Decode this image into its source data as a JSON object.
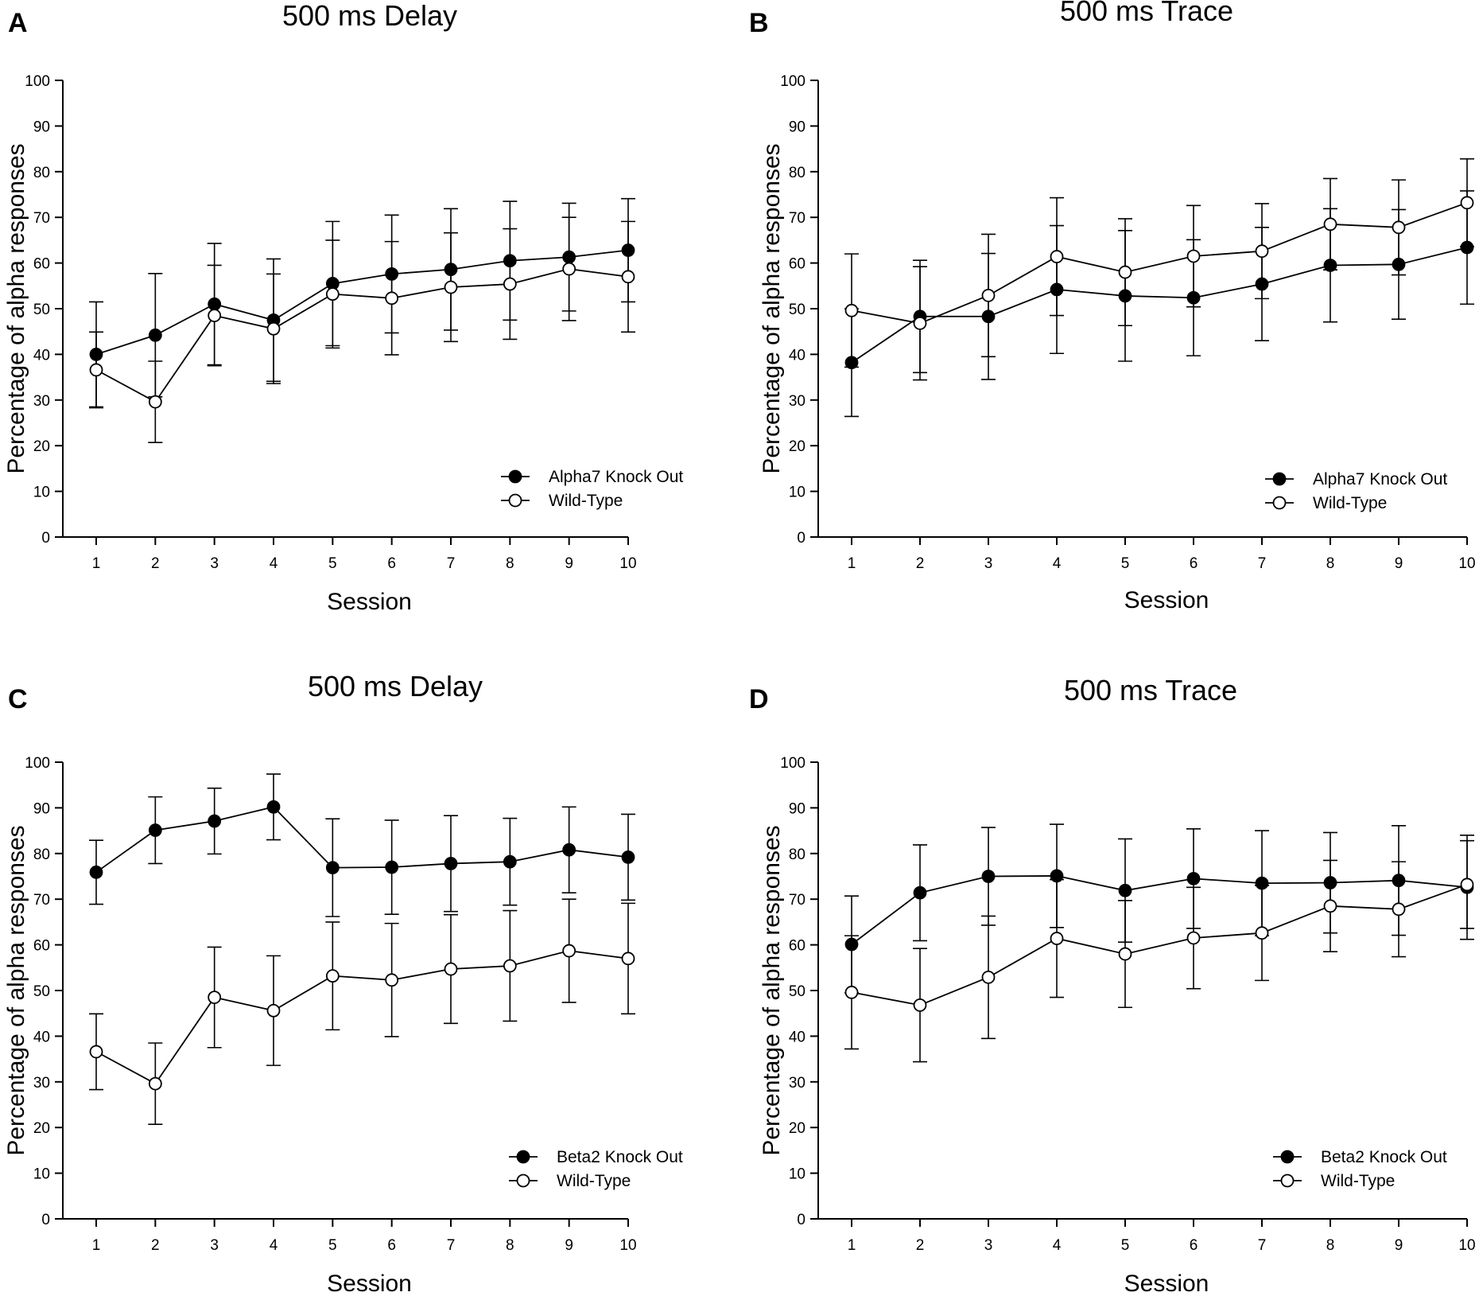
{
  "chart_data": [
    {
      "panel": "A",
      "type": "line",
      "title": "500 ms Delay",
      "xlabel": "Session",
      "ylabel": "Percentage of alpha responses",
      "ylim": [
        0,
        100
      ],
      "yticks": [
        0,
        10,
        20,
        30,
        40,
        50,
        60,
        70,
        80,
        90,
        100
      ],
      "categories": [
        1,
        2,
        3,
        4,
        5,
        6,
        7,
        8,
        9,
        10
      ],
      "legend_position": "bottom-right",
      "series": [
        {
          "name": "Alpha7 Knock Out",
          "marker": "filled-circle",
          "values": [
            40,
            44.2,
            51,
            47.5,
            55.5,
            57.6,
            58.6,
            60.5,
            61.3,
            62.8
          ],
          "error": [
            11.5,
            13.5,
            13.3,
            13.4,
            13.6,
            12.9,
            13.3,
            13,
            11.8,
            11.3
          ]
        },
        {
          "name": "Wild-Type",
          "marker": "open-circle",
          "values": [
            36.6,
            29.6,
            48.5,
            45.6,
            53.2,
            52.3,
            54.7,
            55.4,
            58.7,
            57
          ]
        },
        {
          "name": "Wild-Type",
          "marker": "open-circle",
          "values": [
            36.6,
            29.6,
            48.5,
            45.6,
            53.2,
            52.3,
            54.7,
            55.4,
            58.7,
            57
          ],
          "error": [
            8.3,
            8.9,
            11,
            12,
            11.8,
            12.4,
            11.9,
            12.1,
            11.3,
            12.1
          ]
        }
      ]
    },
    {
      "panel": "B",
      "type": "line",
      "title": "500 ms Trace",
      "xlabel": "Session",
      "ylabel": "Percentage of alpha responses",
      "ylim": [
        0,
        100
      ],
      "yticks": [
        0,
        10,
        20,
        30,
        40,
        50,
        60,
        70,
        80,
        90,
        100
      ],
      "categories": [
        1,
        2,
        3,
        4,
        5,
        6,
        7,
        8,
        9,
        10
      ],
      "legend_position": "bottom-right",
      "series": [
        {
          "name": "Alpha7 Knock Out",
          "marker": "filled-circle",
          "values": [
            38.2,
            48.3,
            48.3,
            54.2,
            52.8,
            52.4,
            55.4,
            59.5,
            59.7,
            63.4
          ],
          "error": [
            11.8,
            12.3,
            13.8,
            14,
            14.3,
            12.7,
            12.4,
            12.4,
            12,
            12.4
          ]
        },
        {
          "name": "Wild-Type",
          "marker": "open-circle",
          "values": [
            49.6,
            46.8,
            52.9,
            61.4,
            58,
            61.5,
            62.6,
            68.5,
            67.8,
            73.2
          ],
          "error": [
            12.4,
            12.4,
            13.4,
            12.9,
            11.7,
            11.1,
            10.4,
            10,
            10.4,
            9.6
          ]
        }
      ]
    },
    {
      "panel": "C",
      "type": "line",
      "title": "500 ms Delay",
      "xlabel": "Session",
      "ylabel": "Percentage of alpha responses",
      "ylim": [
        0,
        100
      ],
      "yticks": [
        0,
        10,
        20,
        30,
        40,
        50,
        60,
        70,
        80,
        90,
        100
      ],
      "categories": [
        1,
        2,
        3,
        4,
        5,
        6,
        7,
        8,
        9,
        10
      ],
      "legend_position": "bottom-right",
      "series": [
        {
          "name": "Beta2 Knock Out",
          "marker": "filled-circle",
          "values": [
            75.9,
            85.1,
            87.1,
            90.2,
            76.9,
            77,
            77.8,
            78.2,
            80.8,
            79.2
          ],
          "error": [
            7,
            7.3,
            7.2,
            7.2,
            10.7,
            10.3,
            10.5,
            9.5,
            9.4,
            9.4
          ]
        },
        {
          "name": "Wild-Type",
          "marker": "open-circle",
          "values": [
            36.6,
            29.6,
            48.5,
            45.6,
            53.2,
            52.3,
            54.7,
            55.4,
            58.7,
            57
          ],
          "error": [
            8.3,
            8.9,
            11,
            12,
            11.8,
            12.4,
            11.9,
            12.1,
            11.3,
            12.1
          ]
        }
      ]
    },
    {
      "panel": "D",
      "type": "line",
      "title": "500 ms Trace",
      "xlabel": "Session",
      "ylabel": "Percentage of alpha responses",
      "ylim": [
        0,
        100
      ],
      "yticks": [
        0,
        10,
        20,
        30,
        40,
        50,
        60,
        70,
        80,
        90,
        100
      ],
      "categories": [
        1,
        2,
        3,
        4,
        5,
        6,
        7,
        8,
        9,
        10
      ],
      "legend_position": "bottom-right",
      "series": [
        {
          "name": "Beta2 Knock Out",
          "marker": "filled-circle",
          "values": [
            60.1,
            71.4,
            75,
            75.1,
            71.9,
            74.5,
            73.5,
            73.6,
            74.1,
            72.6
          ],
          "error": [
            10.6,
            10.5,
            10.7,
            11.3,
            11.3,
            10.9,
            11.5,
            11,
            12,
            11.4
          ]
        },
        {
          "name": "Wild-Type",
          "marker": "open-circle",
          "values": [
            49.6,
            46.8,
            52.9,
            61.4,
            58,
            61.5,
            62.6,
            68.5,
            67.8,
            73.2
          ],
          "error": [
            12.4,
            12.4,
            13.4,
            12.9,
            11.7,
            11.1,
            10.4,
            10,
            10.4,
            9.6
          ]
        }
      ]
    }
  ]
}
